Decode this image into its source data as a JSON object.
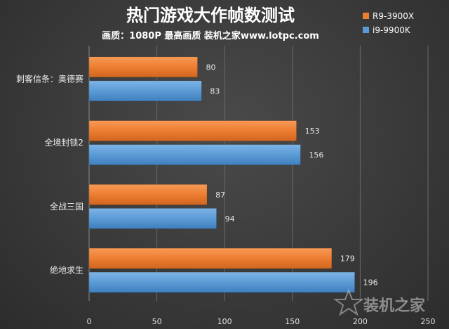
{
  "chart_data": {
    "type": "bar",
    "orientation": "horizontal",
    "title": "热门游戏大作帧数测试",
    "subtitle": "画质：1080P 最高画质 装机之家www.lotpc.com",
    "categories": [
      "刺客信条：奥德赛",
      "全境封锁2",
      "全战三国",
      "绝地求生"
    ],
    "series": [
      {
        "name": "R9-3900X",
        "values": [
          80,
          153,
          87,
          179
        ],
        "color": "#ED7D31"
      },
      {
        "name": "i9-9900K",
        "values": [
          83,
          156,
          94,
          196
        ],
        "color": "#5B9BD5"
      }
    ],
    "xlim": [
      0,
      250
    ],
    "xticks": [
      0,
      50,
      100,
      150,
      200,
      250
    ],
    "grid": true,
    "legend": "top-right"
  },
  "watermark": "装机之家"
}
